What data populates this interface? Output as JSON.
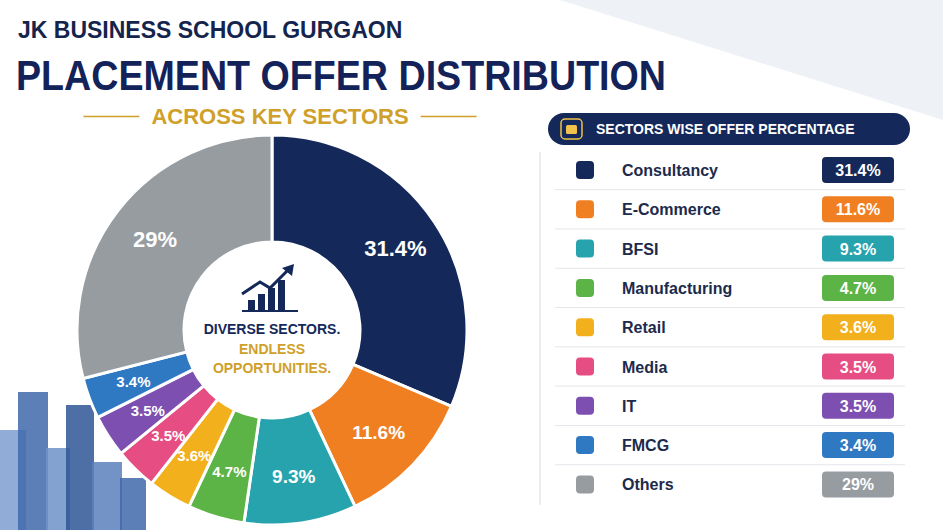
{
  "chart_data": {
    "type": "pie",
    "title": "PLACEMENT OFFER DISTRIBUTION",
    "subtitle": "ACROSS KEY SECTORS",
    "annotations": [
      "JK BUSINESS SCHOOL GURGAON",
      "DIVERSE SECTORS.",
      "ENDLESS OPPORTUNITIES.",
      "SECTORS WISE OFFER PERCENTAGE"
    ],
    "categories": [
      "Consultancy",
      "E-Commerce",
      "BFSI",
      "Manufacturing",
      "Retail",
      "Media",
      "IT",
      "FMCG",
      "Others"
    ],
    "values": [
      31.4,
      11.6,
      9.3,
      4.7,
      3.6,
      3.5,
      3.5,
      3.4,
      29
    ],
    "value_labels": [
      "31.4%",
      "11.6%",
      "9.3%",
      "4.7%",
      "3.6%",
      "3.5%",
      "3.5%",
      "3.4%",
      "29%"
    ],
    "colors": [
      "#14285a",
      "#f07f22",
      "#26a3ad",
      "#5db446",
      "#f2b01c",
      "#e64d82",
      "#7d4fb0",
      "#2f78c2",
      "#979ca1"
    ],
    "data_labels": true,
    "legend": "right"
  }
}
